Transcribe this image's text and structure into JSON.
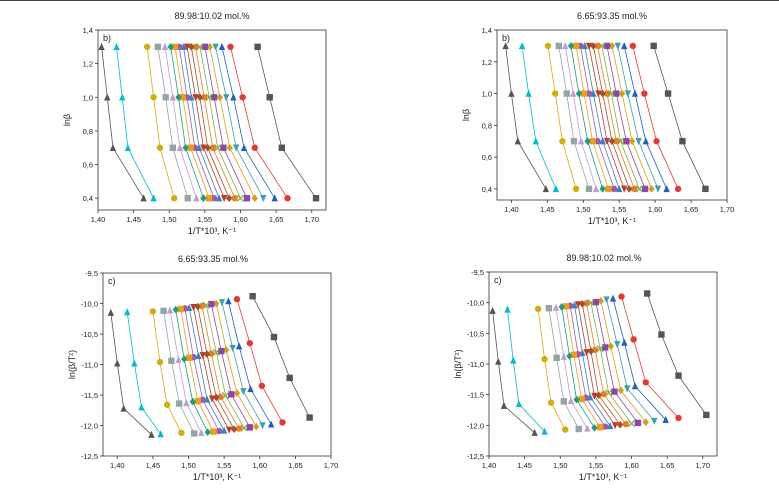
{
  "colors": {
    "series": [
      "#555555",
      "#e53935",
      "#1f5fbf",
      "#3aa0b0",
      "#d4a017",
      "#8e44ad",
      "#7cb342",
      "#e67e22",
      "#a0522d",
      "#c0392b",
      "#2e86c1",
      "#9b59b6",
      "#f39c12",
      "#16a085",
      "#c39bd3",
      "#95a5a6",
      "#d4ac0d",
      "#00bcd4"
    ],
    "axes": "#333333"
  },
  "chart_data": [
    {
      "type": "scatter",
      "panel": "top-left",
      "title": "89.98:10.02 mol.%",
      "letter": "b)",
      "xlabel": "1/T*10³, K⁻¹",
      "ylabel": "lnβ",
      "xlim": [
        1.4,
        1.72
      ],
      "ylim": [
        0.33,
        1.4
      ],
      "xticks": [
        "1,40",
        "1,45",
        "1,50",
        "1,55",
        "1,60",
        "1,65",
        "1,70"
      ],
      "xtick_values": [
        1.4,
        1.45,
        1.5,
        1.55,
        1.6,
        1.65,
        1.7
      ],
      "yticks": [
        "0,4",
        "0,6",
        "0,8",
        "1,0",
        "1,2",
        "1,4"
      ],
      "ytick_values": [
        0.4,
        0.6,
        0.8,
        1.0,
        1.2,
        1.4
      ],
      "y_levels": [
        1.3,
        1.0,
        0.7,
        0.4
      ],
      "series_x": [
        [
          1.624,
          1.641,
          1.658,
          1.706
        ],
        [
          1.586,
          1.603,
          1.62,
          1.666
        ],
        [
          1.574,
          1.59,
          1.605,
          1.648
        ],
        [
          1.565,
          1.58,
          1.594,
          1.632
        ],
        [
          1.557,
          1.571,
          1.585,
          1.62
        ],
        [
          1.55,
          1.563,
          1.576,
          1.609
        ],
        [
          1.543,
          1.556,
          1.568,
          1.6
        ],
        [
          1.537,
          1.549,
          1.561,
          1.592
        ],
        [
          1.531,
          1.543,
          1.554,
          1.584
        ],
        [
          1.525,
          1.537,
          1.548,
          1.577
        ],
        [
          1.52,
          1.531,
          1.542,
          1.57
        ],
        [
          1.514,
          1.525,
          1.536,
          1.563
        ],
        [
          1.508,
          1.519,
          1.53,
          1.556
        ],
        [
          1.502,
          1.513,
          1.523,
          1.548
        ],
        [
          1.494,
          1.505,
          1.515,
          1.538
        ],
        [
          1.484,
          1.495,
          1.505,
          1.526
        ],
        [
          1.469,
          1.478,
          1.487,
          1.507
        ],
        [
          1.426,
          1.434,
          1.442,
          1.478
        ],
        [
          1.405,
          1.413,
          1.421,
          1.464
        ]
      ]
    },
    {
      "type": "scatter",
      "panel": "top-right",
      "title": "6.65:93.35 mol.%",
      "letter": "b)",
      "xlabel": "1/T*10³, K⁻¹",
      "ylabel": "lnβ",
      "xlim": [
        1.38,
        1.7
      ],
      "ylim": [
        0.33,
        1.4
      ],
      "xticks": [
        "1,40",
        "1,45",
        "1,50",
        "1,55",
        "1,60",
        "1,65",
        "1,70"
      ],
      "xtick_values": [
        1.4,
        1.45,
        1.5,
        1.55,
        1.6,
        1.65,
        1.7
      ],
      "yticks": [
        "0,4",
        "0,6",
        "0,8",
        "1,0",
        "1,2",
        "1,4"
      ],
      "ytick_values": [
        0.4,
        0.6,
        0.8,
        1.0,
        1.2,
        1.4
      ],
      "y_levels": [
        1.3,
        1.0,
        0.7,
        0.4
      ],
      "series_x": [
        [
          1.598,
          1.618,
          1.638,
          1.67
        ],
        [
          1.569,
          1.585,
          1.602,
          1.632
        ],
        [
          1.557,
          1.572,
          1.587,
          1.616
        ],
        [
          1.548,
          1.562,
          1.577,
          1.604
        ],
        [
          1.54,
          1.554,
          1.568,
          1.595
        ],
        [
          1.533,
          1.546,
          1.56,
          1.586
        ],
        [
          1.526,
          1.539,
          1.552,
          1.578
        ],
        [
          1.52,
          1.533,
          1.546,
          1.571
        ],
        [
          1.514,
          1.527,
          1.54,
          1.564
        ],
        [
          1.508,
          1.521,
          1.533,
          1.557
        ],
        [
          1.502,
          1.514,
          1.527,
          1.55
        ],
        [
          1.496,
          1.508,
          1.52,
          1.543
        ],
        [
          1.49,
          1.501,
          1.513,
          1.535
        ],
        [
          1.483,
          1.494,
          1.506,
          1.527
        ],
        [
          1.475,
          1.486,
          1.497,
          1.518
        ],
        [
          1.466,
          1.477,
          1.487,
          1.508
        ],
        [
          1.451,
          1.461,
          1.471,
          1.49
        ],
        [
          1.415,
          1.424,
          1.434,
          1.462
        ],
        [
          1.392,
          1.4,
          1.409,
          1.448
        ]
      ]
    },
    {
      "type": "scatter",
      "panel": "bottom-left",
      "title": "6.65:93.35 mol.%",
      "letter": "c)",
      "xlabel": "1/T*10³, K⁻¹",
      "ylabel": "ln(β/T²)",
      "xlim": [
        1.38,
        1.7
      ],
      "ylim": [
        -12.5,
        -9.5
      ],
      "xticks": [
        "1,40",
        "1,45",
        "1,50",
        "1,55",
        "1,60",
        "1,65",
        "1,70"
      ],
      "xtick_values": [
        1.4,
        1.45,
        1.5,
        1.55,
        1.6,
        1.65,
        1.7
      ],
      "yticks": [
        "-12,5",
        "-12,0",
        "-11,5",
        "-11,0",
        "-10,5",
        "-10,0",
        "-9,5"
      ],
      "ytick_values": [
        -12.5,
        -12.0,
        -11.5,
        -11.0,
        -10.5,
        -10.0,
        -9.5
      ],
      "series_points": [
        [
          [
            1.59,
            -9.88
          ],
          [
            1.62,
            -10.55
          ],
          [
            1.642,
            -11.22
          ],
          [
            1.67,
            -11.87
          ]
        ],
        [
          [
            1.568,
            -9.93
          ],
          [
            1.586,
            -10.65
          ],
          [
            1.603,
            -11.35
          ],
          [
            1.632,
            -11.95
          ]
        ],
        [
          [
            1.556,
            -9.96
          ],
          [
            1.571,
            -10.7
          ],
          [
            1.587,
            -11.4
          ],
          [
            1.616,
            -11.98
          ]
        ],
        [
          [
            1.547,
            -9.98
          ],
          [
            1.562,
            -10.73
          ],
          [
            1.577,
            -11.44
          ],
          [
            1.604,
            -12.0
          ]
        ],
        [
          [
            1.539,
            -10.0
          ],
          [
            1.553,
            -10.76
          ],
          [
            1.568,
            -11.47
          ],
          [
            1.595,
            -12.02
          ]
        ],
        [
          [
            1.532,
            -10.01
          ],
          [
            1.546,
            -10.78
          ],
          [
            1.56,
            -11.49
          ],
          [
            1.586,
            -12.03
          ]
        ],
        [
          [
            1.525,
            -10.03
          ],
          [
            1.539,
            -10.8
          ],
          [
            1.552,
            -11.51
          ],
          [
            1.578,
            -12.04
          ]
        ],
        [
          [
            1.519,
            -10.04
          ],
          [
            1.532,
            -10.82
          ],
          [
            1.545,
            -11.53
          ],
          [
            1.571,
            -12.05
          ]
        ],
        [
          [
            1.513,
            -10.05
          ],
          [
            1.526,
            -10.83
          ],
          [
            1.539,
            -11.54
          ],
          [
            1.564,
            -12.06
          ]
        ],
        [
          [
            1.507,
            -10.06
          ],
          [
            1.52,
            -10.85
          ],
          [
            1.533,
            -11.56
          ],
          [
            1.557,
            -12.07
          ]
        ],
        [
          [
            1.501,
            -10.07
          ],
          [
            1.514,
            -10.86
          ],
          [
            1.526,
            -11.57
          ],
          [
            1.55,
            -12.08
          ]
        ],
        [
          [
            1.495,
            -10.08
          ],
          [
            1.507,
            -10.88
          ],
          [
            1.52,
            -11.58
          ],
          [
            1.543,
            -12.09
          ]
        ],
        [
          [
            1.489,
            -10.09
          ],
          [
            1.501,
            -10.89
          ],
          [
            1.513,
            -11.6
          ],
          [
            1.535,
            -12.1
          ]
        ],
        [
          [
            1.482,
            -10.1
          ],
          [
            1.494,
            -10.91
          ],
          [
            1.506,
            -11.61
          ],
          [
            1.527,
            -12.11
          ]
        ],
        [
          [
            1.474,
            -10.11
          ],
          [
            1.486,
            -10.92
          ],
          [
            1.497,
            -11.63
          ],
          [
            1.518,
            -12.12
          ]
        ],
        [
          [
            1.465,
            -10.12
          ],
          [
            1.476,
            -10.94
          ],
          [
            1.487,
            -11.64
          ],
          [
            1.508,
            -12.13
          ]
        ],
        [
          [
            1.45,
            -10.13
          ],
          [
            1.46,
            -10.96
          ],
          [
            1.47,
            -11.66
          ],
          [
            1.49,
            -12.12
          ]
        ],
        [
          [
            1.414,
            -10.14
          ],
          [
            1.424,
            -10.98
          ],
          [
            1.434,
            -11.7
          ],
          [
            1.461,
            -12.14
          ]
        ],
        [
          [
            1.391,
            -10.15
          ],
          [
            1.4,
            -10.98
          ],
          [
            1.409,
            -11.72
          ],
          [
            1.448,
            -12.15
          ]
        ]
      ]
    },
    {
      "type": "scatter",
      "panel": "bottom-right",
      "title": "89.98:10.02 mol.%",
      "letter": "c)",
      "xlabel": "1/T*10³, K⁻¹",
      "ylabel": "ln(β/T²)",
      "xlim": [
        1.4,
        1.72
      ],
      "ylim": [
        -12.5,
        -9.5
      ],
      "xticks": [
        "1,40",
        "1,45",
        "1,50",
        "1,55",
        "1,60",
        "1,65",
        "1,70"
      ],
      "xtick_values": [
        1.4,
        1.45,
        1.5,
        1.55,
        1.6,
        1.65,
        1.7
      ],
      "yticks": [
        "-12,5",
        "-12,0",
        "-11,5",
        "-11,0",
        "-10,5",
        "-10,0",
        "-9,5"
      ],
      "ytick_values": [
        -12.5,
        -12.0,
        -11.5,
        -11.0,
        -10.5,
        -10.0,
        -9.5
      ],
      "series_points": [
        [
          [
            1.622,
            -9.85
          ],
          [
            1.642,
            -10.52
          ],
          [
            1.666,
            -11.19
          ],
          [
            1.705,
            -11.83
          ]
        ],
        [
          [
            1.586,
            -9.9
          ],
          [
            1.603,
            -10.6
          ],
          [
            1.62,
            -11.3
          ],
          [
            1.666,
            -11.88
          ]
        ],
        [
          [
            1.574,
            -9.93
          ],
          [
            1.59,
            -10.65
          ],
          [
            1.605,
            -11.36
          ],
          [
            1.648,
            -11.91
          ]
        ],
        [
          [
            1.565,
            -9.95
          ],
          [
            1.58,
            -10.68
          ],
          [
            1.594,
            -11.4
          ],
          [
            1.632,
            -11.93
          ]
        ],
        [
          [
            1.557,
            -9.97
          ],
          [
            1.571,
            -10.71
          ],
          [
            1.585,
            -11.43
          ],
          [
            1.62,
            -11.95
          ]
        ],
        [
          [
            1.55,
            -9.99
          ],
          [
            1.563,
            -10.73
          ],
          [
            1.576,
            -11.45
          ],
          [
            1.609,
            -11.96
          ]
        ],
        [
          [
            1.543,
            -10.0
          ],
          [
            1.556,
            -10.75
          ],
          [
            1.568,
            -11.47
          ],
          [
            1.6,
            -11.97
          ]
        ],
        [
          [
            1.537,
            -10.01
          ],
          [
            1.549,
            -10.77
          ],
          [
            1.561,
            -11.49
          ],
          [
            1.592,
            -11.98
          ]
        ],
        [
          [
            1.531,
            -10.02
          ],
          [
            1.543,
            -10.79
          ],
          [
            1.554,
            -11.51
          ],
          [
            1.584,
            -11.99
          ]
        ],
        [
          [
            1.525,
            -10.03
          ],
          [
            1.537,
            -10.81
          ],
          [
            1.548,
            -11.52
          ],
          [
            1.577,
            -12.0
          ]
        ],
        [
          [
            1.52,
            -10.04
          ],
          [
            1.531,
            -10.82
          ],
          [
            1.542,
            -11.54
          ],
          [
            1.57,
            -12.01
          ]
        ],
        [
          [
            1.514,
            -10.05
          ],
          [
            1.525,
            -10.84
          ],
          [
            1.536,
            -11.55
          ],
          [
            1.563,
            -12.02
          ]
        ],
        [
          [
            1.508,
            -10.06
          ],
          [
            1.519,
            -10.85
          ],
          [
            1.53,
            -11.57
          ],
          [
            1.556,
            -12.03
          ]
        ],
        [
          [
            1.502,
            -10.07
          ],
          [
            1.513,
            -10.87
          ],
          [
            1.523,
            -11.58
          ],
          [
            1.548,
            -12.04
          ]
        ],
        [
          [
            1.494,
            -10.08
          ],
          [
            1.505,
            -10.88
          ],
          [
            1.515,
            -11.6
          ],
          [
            1.538,
            -12.05
          ]
        ],
        [
          [
            1.484,
            -10.09
          ],
          [
            1.495,
            -10.9
          ],
          [
            1.505,
            -11.61
          ],
          [
            1.526,
            -12.06
          ]
        ],
        [
          [
            1.469,
            -10.1
          ],
          [
            1.478,
            -10.92
          ],
          [
            1.487,
            -11.63
          ],
          [
            1.507,
            -12.07
          ]
        ],
        [
          [
            1.426,
            -10.11
          ],
          [
            1.434,
            -10.94
          ],
          [
            1.442,
            -11.65
          ],
          [
            1.478,
            -12.1
          ]
        ],
        [
          [
            1.405,
            -10.13
          ],
          [
            1.413,
            -10.96
          ],
          [
            1.421,
            -11.68
          ],
          [
            1.464,
            -12.12
          ]
        ]
      ]
    }
  ]
}
